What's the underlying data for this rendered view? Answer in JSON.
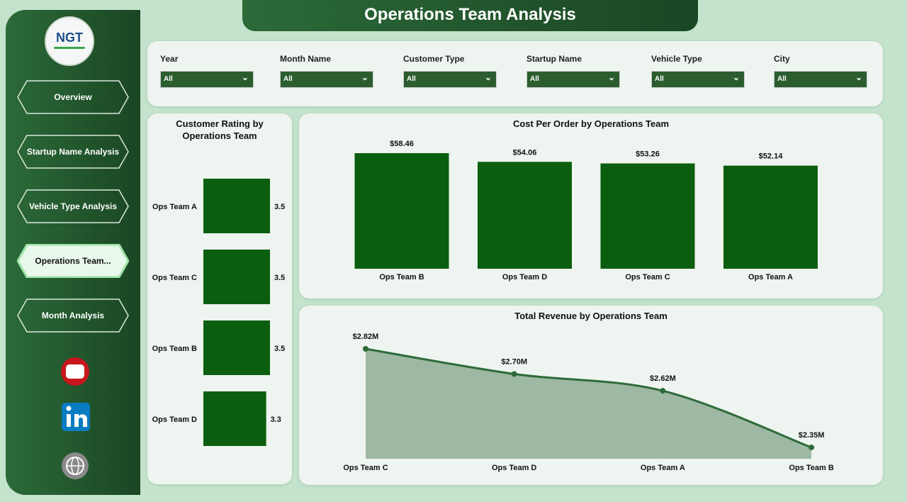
{
  "header": {
    "title": "Operations Team Analysis"
  },
  "logo": {
    "text": "NGT"
  },
  "nav": {
    "items": [
      "Overview",
      "Startup Name Analysis",
      "Vehicle Type Analysis",
      "Operations Team...",
      "Month Analysis"
    ]
  },
  "filters": [
    {
      "label": "Year",
      "value": "All"
    },
    {
      "label": "Month Name",
      "value": "All"
    },
    {
      "label": "Customer Type",
      "value": "All"
    },
    {
      "label": "Startup Name",
      "value": "All"
    },
    {
      "label": "Vehicle Type",
      "value": "All"
    },
    {
      "label": "City",
      "value": "All"
    }
  ],
  "chart_data": [
    {
      "type": "hbar",
      "title": "Customer Rating by Operations Team",
      "categories": [
        "Ops Team A",
        "Ops Team C",
        "Ops Team B",
        "Ops Team D"
      ],
      "values": [
        3.5,
        3.5,
        3.5,
        3.3
      ],
      "color": "#0b5e0f"
    },
    {
      "type": "bar",
      "title": "Cost Per Order by Operations Team",
      "categories": [
        "Ops Team B",
        "Ops Team D",
        "Ops Team C",
        "Ops Team A"
      ],
      "values": [
        58.46,
        54.06,
        53.26,
        52.14
      ],
      "value_labels": [
        "$58.46",
        "$54.06",
        "$53.26",
        "$52.14"
      ],
      "color": "#0b5e0f"
    },
    {
      "type": "area",
      "title": "Total Revenue by Operations Team",
      "categories": [
        "Ops Team C",
        "Ops Team D",
        "Ops Team A",
        "Ops Team B"
      ],
      "values": [
        2820000,
        2700000,
        2620000,
        2350000
      ],
      "value_labels": [
        "$2.82M",
        "$2.70M",
        "$2.62M",
        "$2.35M"
      ],
      "color": "#2e6b3a"
    }
  ]
}
